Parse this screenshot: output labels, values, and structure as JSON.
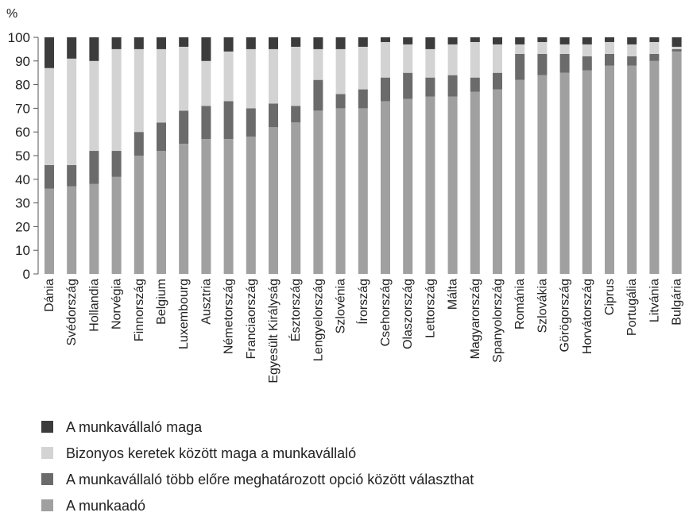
{
  "chart_data": {
    "type": "bar",
    "stacked": true,
    "percent_stacked": true,
    "unit_label": "%",
    "ylim": [
      0,
      100
    ],
    "yticks": [
      0,
      10,
      20,
      30,
      40,
      50,
      60,
      70,
      80,
      90,
      100
    ],
    "grid": false,
    "legend_position": "bottom-left",
    "categories": [
      "Dánia",
      "Svédország",
      "Hollandia",
      "Norvégia",
      "Finnország",
      "Belgium",
      "Luxembourg",
      "Ausztria",
      "Németország",
      "Franciaország",
      "Egyesült Királyság",
      "Észtország",
      "Lengyelország",
      "Szlovénia",
      "Írország",
      "Csehország",
      "Olaszország",
      "Lettország",
      "Málta",
      "Magyarország",
      "Spanyolország",
      "Románia",
      "Szlovákia",
      "Görögország",
      "Horvátország",
      "Ciprus",
      "Portugália",
      "Litvánia",
      "Bulgária"
    ],
    "series": [
      {
        "name": "A munkaadó",
        "color": "#a0a0a0",
        "values": [
          36,
          37,
          38,
          41,
          50,
          52,
          55,
          57,
          57,
          58,
          62,
          64,
          69,
          70,
          70,
          73,
          74,
          75,
          75,
          77,
          78,
          82,
          84,
          85,
          86,
          88,
          88,
          90,
          94
        ]
      },
      {
        "name": "A munkavállaló több előre meghatározott opció között választhat",
        "color": "#6b6b6b",
        "values": [
          10,
          9,
          14,
          11,
          10,
          12,
          14,
          14,
          16,
          12,
          10,
          7,
          13,
          6,
          8,
          10,
          11,
          8,
          9,
          6,
          7,
          11,
          9,
          8,
          6,
          5,
          4,
          3,
          1
        ]
      },
      {
        "name": "Bizonyos keretek között maga a munkavállaló",
        "color": "#d3d3d3",
        "values": [
          41,
          45,
          38,
          43,
          35,
          31,
          27,
          19,
          21,
          25,
          23,
          25,
          13,
          19,
          18,
          15,
          12,
          12,
          13,
          15,
          12,
          4,
          5,
          4,
          5,
          5,
          5,
          5,
          1
        ]
      },
      {
        "name": "A munkavállaló maga",
        "color": "#3c3c3c",
        "values": [
          13,
          9,
          10,
          5,
          5,
          5,
          4,
          10,
          6,
          5,
          5,
          4,
          5,
          5,
          4,
          2,
          3,
          5,
          3,
          2,
          3,
          3,
          2,
          3,
          3,
          2,
          3,
          2,
          4
        ]
      }
    ],
    "legend": [
      {
        "label": "A munkavállaló maga",
        "color": "#3c3c3c"
      },
      {
        "label": "Bizonyos keretek között maga a munkavállaló",
        "color": "#d3d3d3"
      },
      {
        "label": "A munkavállaló több előre meghatározott opció között választhat",
        "color": "#6b6b6b"
      },
      {
        "label": "A munkaadó",
        "color": "#a0a0a0"
      }
    ]
  }
}
